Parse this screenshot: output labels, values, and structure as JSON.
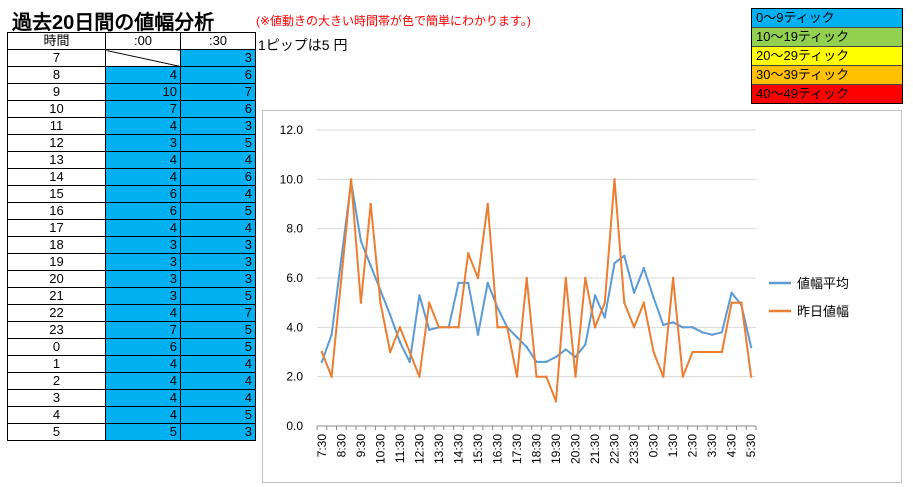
{
  "title": "過去20日間の値幅分析",
  "note": "(※値動きの大きい時間帯が色で簡単にわかります。)",
  "pip_note": "1ピップは5 円",
  "table": {
    "headers": [
      "時間",
      ":00",
      ":30"
    ],
    "cell_color": "#00b0f0",
    "rows": [
      {
        "hour": "7",
        "m00": "",
        "m30": "3"
      },
      {
        "hour": "8",
        "m00": "4",
        "m30": "6"
      },
      {
        "hour": "9",
        "m00": "10",
        "m30": "7"
      },
      {
        "hour": "10",
        "m00": "7",
        "m30": "6"
      },
      {
        "hour": "11",
        "m00": "4",
        "m30": "3"
      },
      {
        "hour": "12",
        "m00": "3",
        "m30": "5"
      },
      {
        "hour": "13",
        "m00": "4",
        "m30": "4"
      },
      {
        "hour": "14",
        "m00": "4",
        "m30": "6"
      },
      {
        "hour": "15",
        "m00": "6",
        "m30": "4"
      },
      {
        "hour": "16",
        "m00": "6",
        "m30": "5"
      },
      {
        "hour": "17",
        "m00": "4",
        "m30": "4"
      },
      {
        "hour": "18",
        "m00": "3",
        "m30": "3"
      },
      {
        "hour": "19",
        "m00": "3",
        "m30": "3"
      },
      {
        "hour": "20",
        "m00": "3",
        "m30": "3"
      },
      {
        "hour": "21",
        "m00": "3",
        "m30": "5"
      },
      {
        "hour": "22",
        "m00": "4",
        "m30": "7"
      },
      {
        "hour": "23",
        "m00": "7",
        "m30": "5"
      },
      {
        "hour": "0",
        "m00": "6",
        "m30": "5"
      },
      {
        "hour": "1",
        "m00": "4",
        "m30": "4"
      },
      {
        "hour": "2",
        "m00": "4",
        "m30": "4"
      },
      {
        "hour": "3",
        "m00": "4",
        "m30": "4"
      },
      {
        "hour": "4",
        "m00": "4",
        "m30": "5"
      },
      {
        "hour": "5",
        "m00": "5",
        "m30": "3"
      }
    ]
  },
  "legend": [
    {
      "label": "0～9ティック",
      "color": "#00b0f0"
    },
    {
      "label": "10～19ティック",
      "color": "#92d050"
    },
    {
      "label": "20～29ティック",
      "color": "#ffff00"
    },
    {
      "label": "30～39ティック",
      "color": "#ffc000"
    },
    {
      "label": "40～49ティック",
      "color": "#ff0000"
    }
  ],
  "chart_data": {
    "type": "line",
    "title": "",
    "xlabel": "",
    "ylabel": "",
    "ylim": [
      0,
      12
    ],
    "yticks": [
      "0.0",
      "2.0",
      "4.0",
      "6.0",
      "8.0",
      "10.0",
      "12.0"
    ],
    "grid": true,
    "legend_position": "right",
    "categories": [
      "7:30",
      "8:00",
      "8:30",
      "9:00",
      "9:30",
      "10:00",
      "10:30",
      "11:00",
      "11:30",
      "12:00",
      "12:30",
      "13:00",
      "13:30",
      "14:00",
      "14:30",
      "15:00",
      "15:30",
      "16:00",
      "16:30",
      "17:00",
      "17:30",
      "18:00",
      "18:30",
      "19:00",
      "19:30",
      "20:00",
      "20:30",
      "21:00",
      "21:30",
      "22:00",
      "22:30",
      "23:00",
      "23:30",
      "0:00",
      "0:30",
      "1:00",
      "1:30",
      "2:00",
      "2:30",
      "3:00",
      "3:30",
      "4:00",
      "4:30",
      "5:00",
      "5:30"
    ],
    "tick_labels": [
      "7:30",
      "8:30",
      "9:30",
      "10:30",
      "11:30",
      "12:30",
      "13:30",
      "14:30",
      "15:30",
      "16:30",
      "17:30",
      "18:30",
      "19:30",
      "20:30",
      "21:30",
      "22:30",
      "23:30",
      "0:30",
      "1:30",
      "2:30",
      "3:30",
      "4:30",
      "5:30"
    ],
    "series": [
      {
        "name": "値幅平均",
        "color": "#5b9bd5",
        "values": [
          2.6,
          3.7,
          6.8,
          9.9,
          7.5,
          6.5,
          5.5,
          4.5,
          3.4,
          2.6,
          5.3,
          3.9,
          4.0,
          4.0,
          5.8,
          5.8,
          3.7,
          5.8,
          4.8,
          4.0,
          3.6,
          3.2,
          2.6,
          2.6,
          2.8,
          3.1,
          2.8,
          3.3,
          5.3,
          4.4,
          6.6,
          6.9,
          5.4,
          6.4,
          5.2,
          4.1,
          4.2,
          4.0,
          4.0,
          3.8,
          3.7,
          3.8,
          5.4,
          4.9,
          3.2
        ]
      },
      {
        "name": "昨日値幅",
        "color": "#ed7d31",
        "values": [
          3,
          2,
          6,
          10,
          5,
          9,
          5,
          3,
          4,
          3,
          2,
          5,
          4,
          4,
          4,
          7,
          6,
          9,
          4,
          4,
          2,
          6,
          2,
          2,
          1,
          6,
          2,
          6,
          4,
          5,
          10,
          5,
          4,
          5,
          3,
          2,
          6,
          2,
          3,
          3,
          3,
          3,
          5,
          5,
          2
        ]
      }
    ]
  }
}
